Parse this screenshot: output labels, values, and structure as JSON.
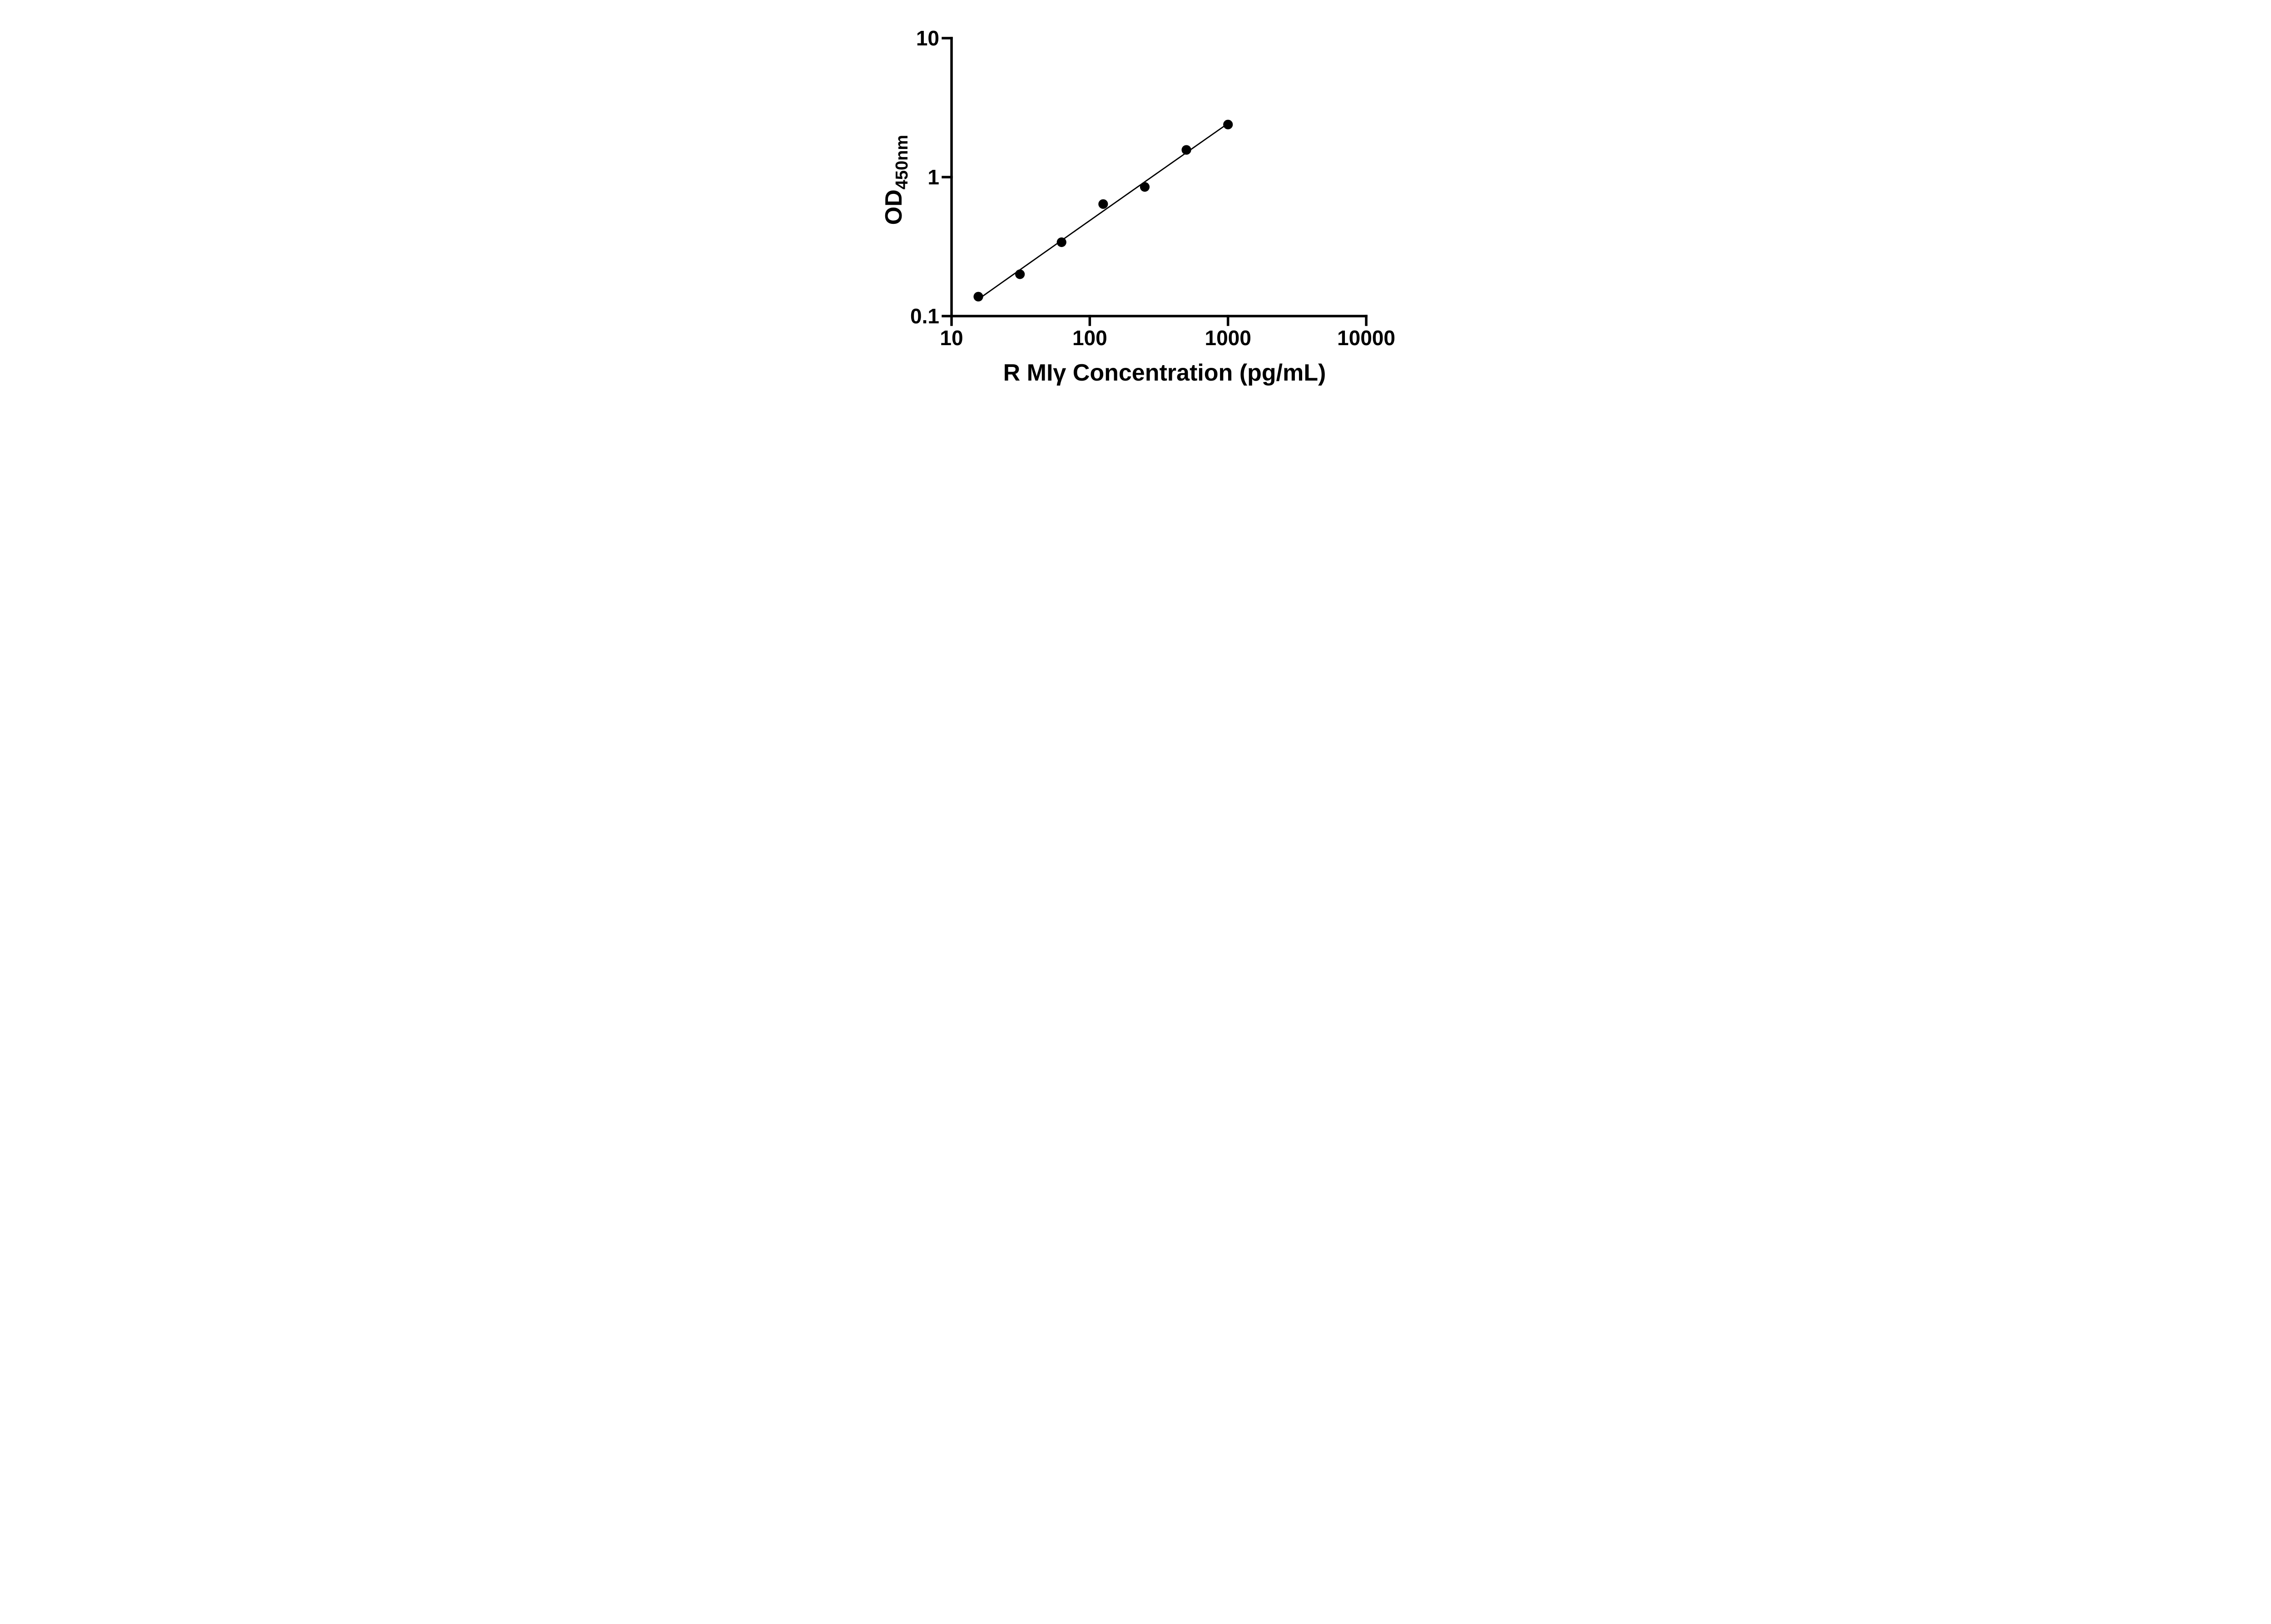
{
  "figure": {
    "background_color": "#ffffff",
    "ink_color": "#000000"
  },
  "chart_data": {
    "type": "scatter",
    "title": "",
    "xlabel": "R MIγ Concentration (pg/mL)",
    "ylabel": "OD",
    "ylabel_subscript": "450nm",
    "x_scale": "log10",
    "y_scale": "log10",
    "xlim": [
      10,
      10000
    ],
    "ylim": [
      0.1,
      10
    ],
    "x_ticks": [
      10,
      100,
      1000,
      10000
    ],
    "x_tick_labels": [
      "10",
      "100",
      "1000",
      "10000"
    ],
    "y_ticks": [
      0.1,
      1,
      10
    ],
    "y_tick_labels": [
      "0.1",
      "1",
      "10"
    ],
    "grid": false,
    "legend": null,
    "series": [
      {
        "name": "standard_curve",
        "marker": "filled-circle",
        "color": "#000000",
        "line": "smooth-fit",
        "x": [
          15.625,
          31.25,
          62.5,
          125,
          250,
          500,
          1000
        ],
        "y": [
          0.138,
          0.2,
          0.34,
          0.64,
          0.85,
          1.57,
          2.39
        ]
      }
    ]
  }
}
